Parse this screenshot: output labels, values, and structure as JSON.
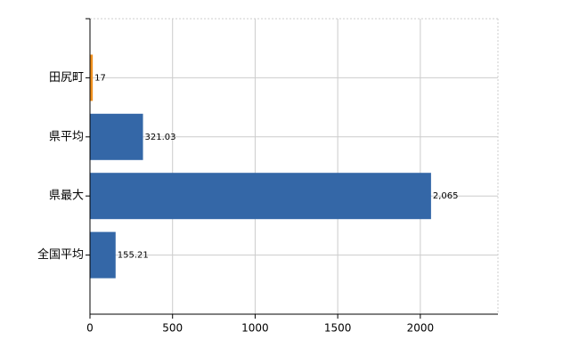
{
  "chart_data": {
    "type": "hbar",
    "categories": [
      "田尻町",
      "県平均",
      "県最大",
      "全国平均"
    ],
    "values": [
      17,
      321.03,
      2065,
      155.21
    ],
    "value_labels": [
      "17",
      "321.03",
      "2,065",
      "155.21"
    ],
    "colors": [
      "#f0901e",
      "#3467a7",
      "#3467a7",
      "#3467a7"
    ],
    "xlim": [
      0,
      2470
    ],
    "xticks": [
      0,
      500,
      1000,
      1500,
      2000
    ],
    "grid": true
  }
}
